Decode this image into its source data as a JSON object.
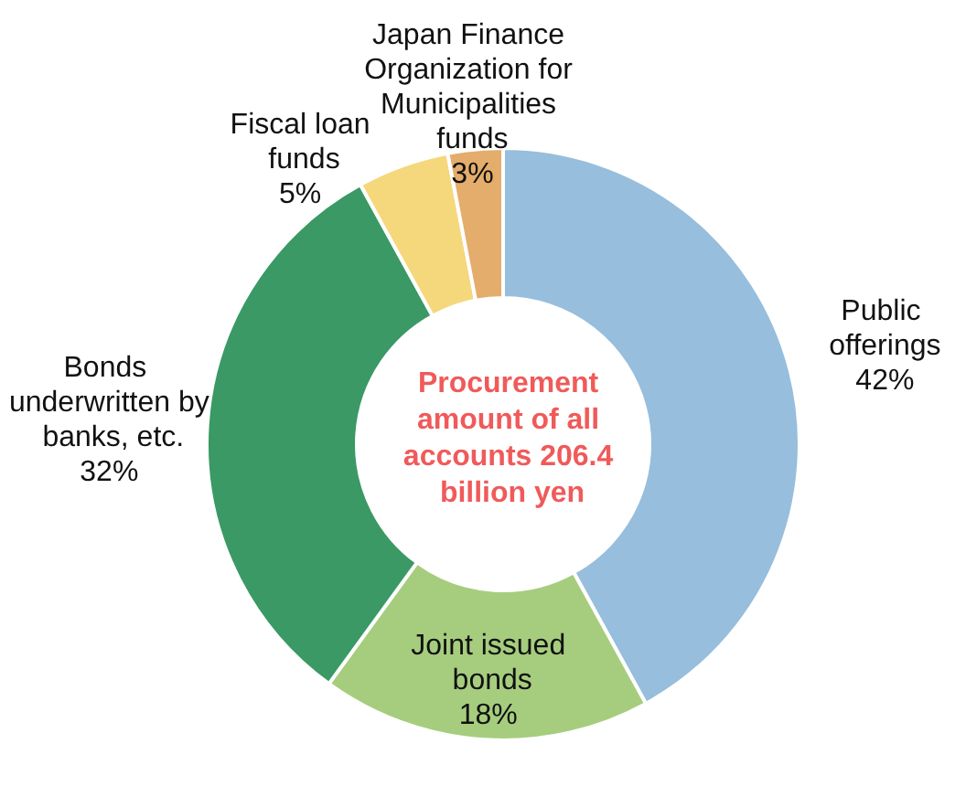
{
  "chart_data": {
    "type": "donut",
    "title": "Procurement amount of all accounts 206.4 billion yen",
    "categories": [
      "Public offerings",
      "Joint issued bonds",
      "Bonds underwritten by banks, etc.",
      "Fiscal loan funds",
      "Japan Finance Organization for Municipalities funds"
    ],
    "values": [
      42,
      18,
      32,
      5,
      3
    ],
    "value_labels": [
      "42%",
      "18%",
      "32%",
      "5%",
      "3%"
    ],
    "colors": [
      "#97bedc",
      "#a6cd7e",
      "#3a9964",
      "#f5d77c",
      "#e4ad6b"
    ],
    "legend": false
  }
}
